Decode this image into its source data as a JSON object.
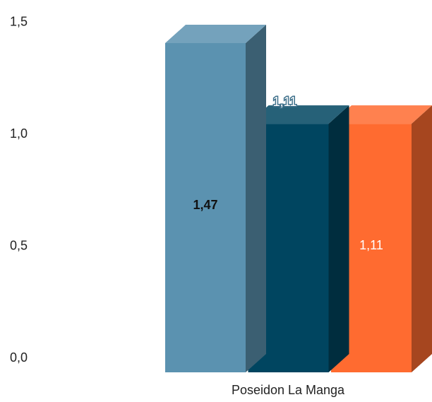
{
  "chart_data": {
    "type": "bar",
    "three_d": true,
    "categories": [
      "Poseidon La Manga"
    ],
    "series": [
      {
        "values": [
          1.47
        ],
        "label": "1,47",
        "color": "#5b92b0",
        "label_color": "#111111",
        "label_bold": true
      },
      {
        "values": [
          1.11
        ],
        "label": "1,11",
        "color": "#004560",
        "label_color": "#ffffff",
        "label_bold": false
      },
      {
        "values": [
          1.11
        ],
        "label": "1,11",
        "color": "#ff6b30",
        "label_color": "#ffffff",
        "label_bold": false
      }
    ],
    "y_ticks": [
      "0,0",
      "0,5",
      "1,0",
      "1,5"
    ],
    "ylim": [
      0,
      1.5
    ],
    "grid": false,
    "legend": "none",
    "title": "",
    "xlabel": "",
    "ylabel": ""
  }
}
